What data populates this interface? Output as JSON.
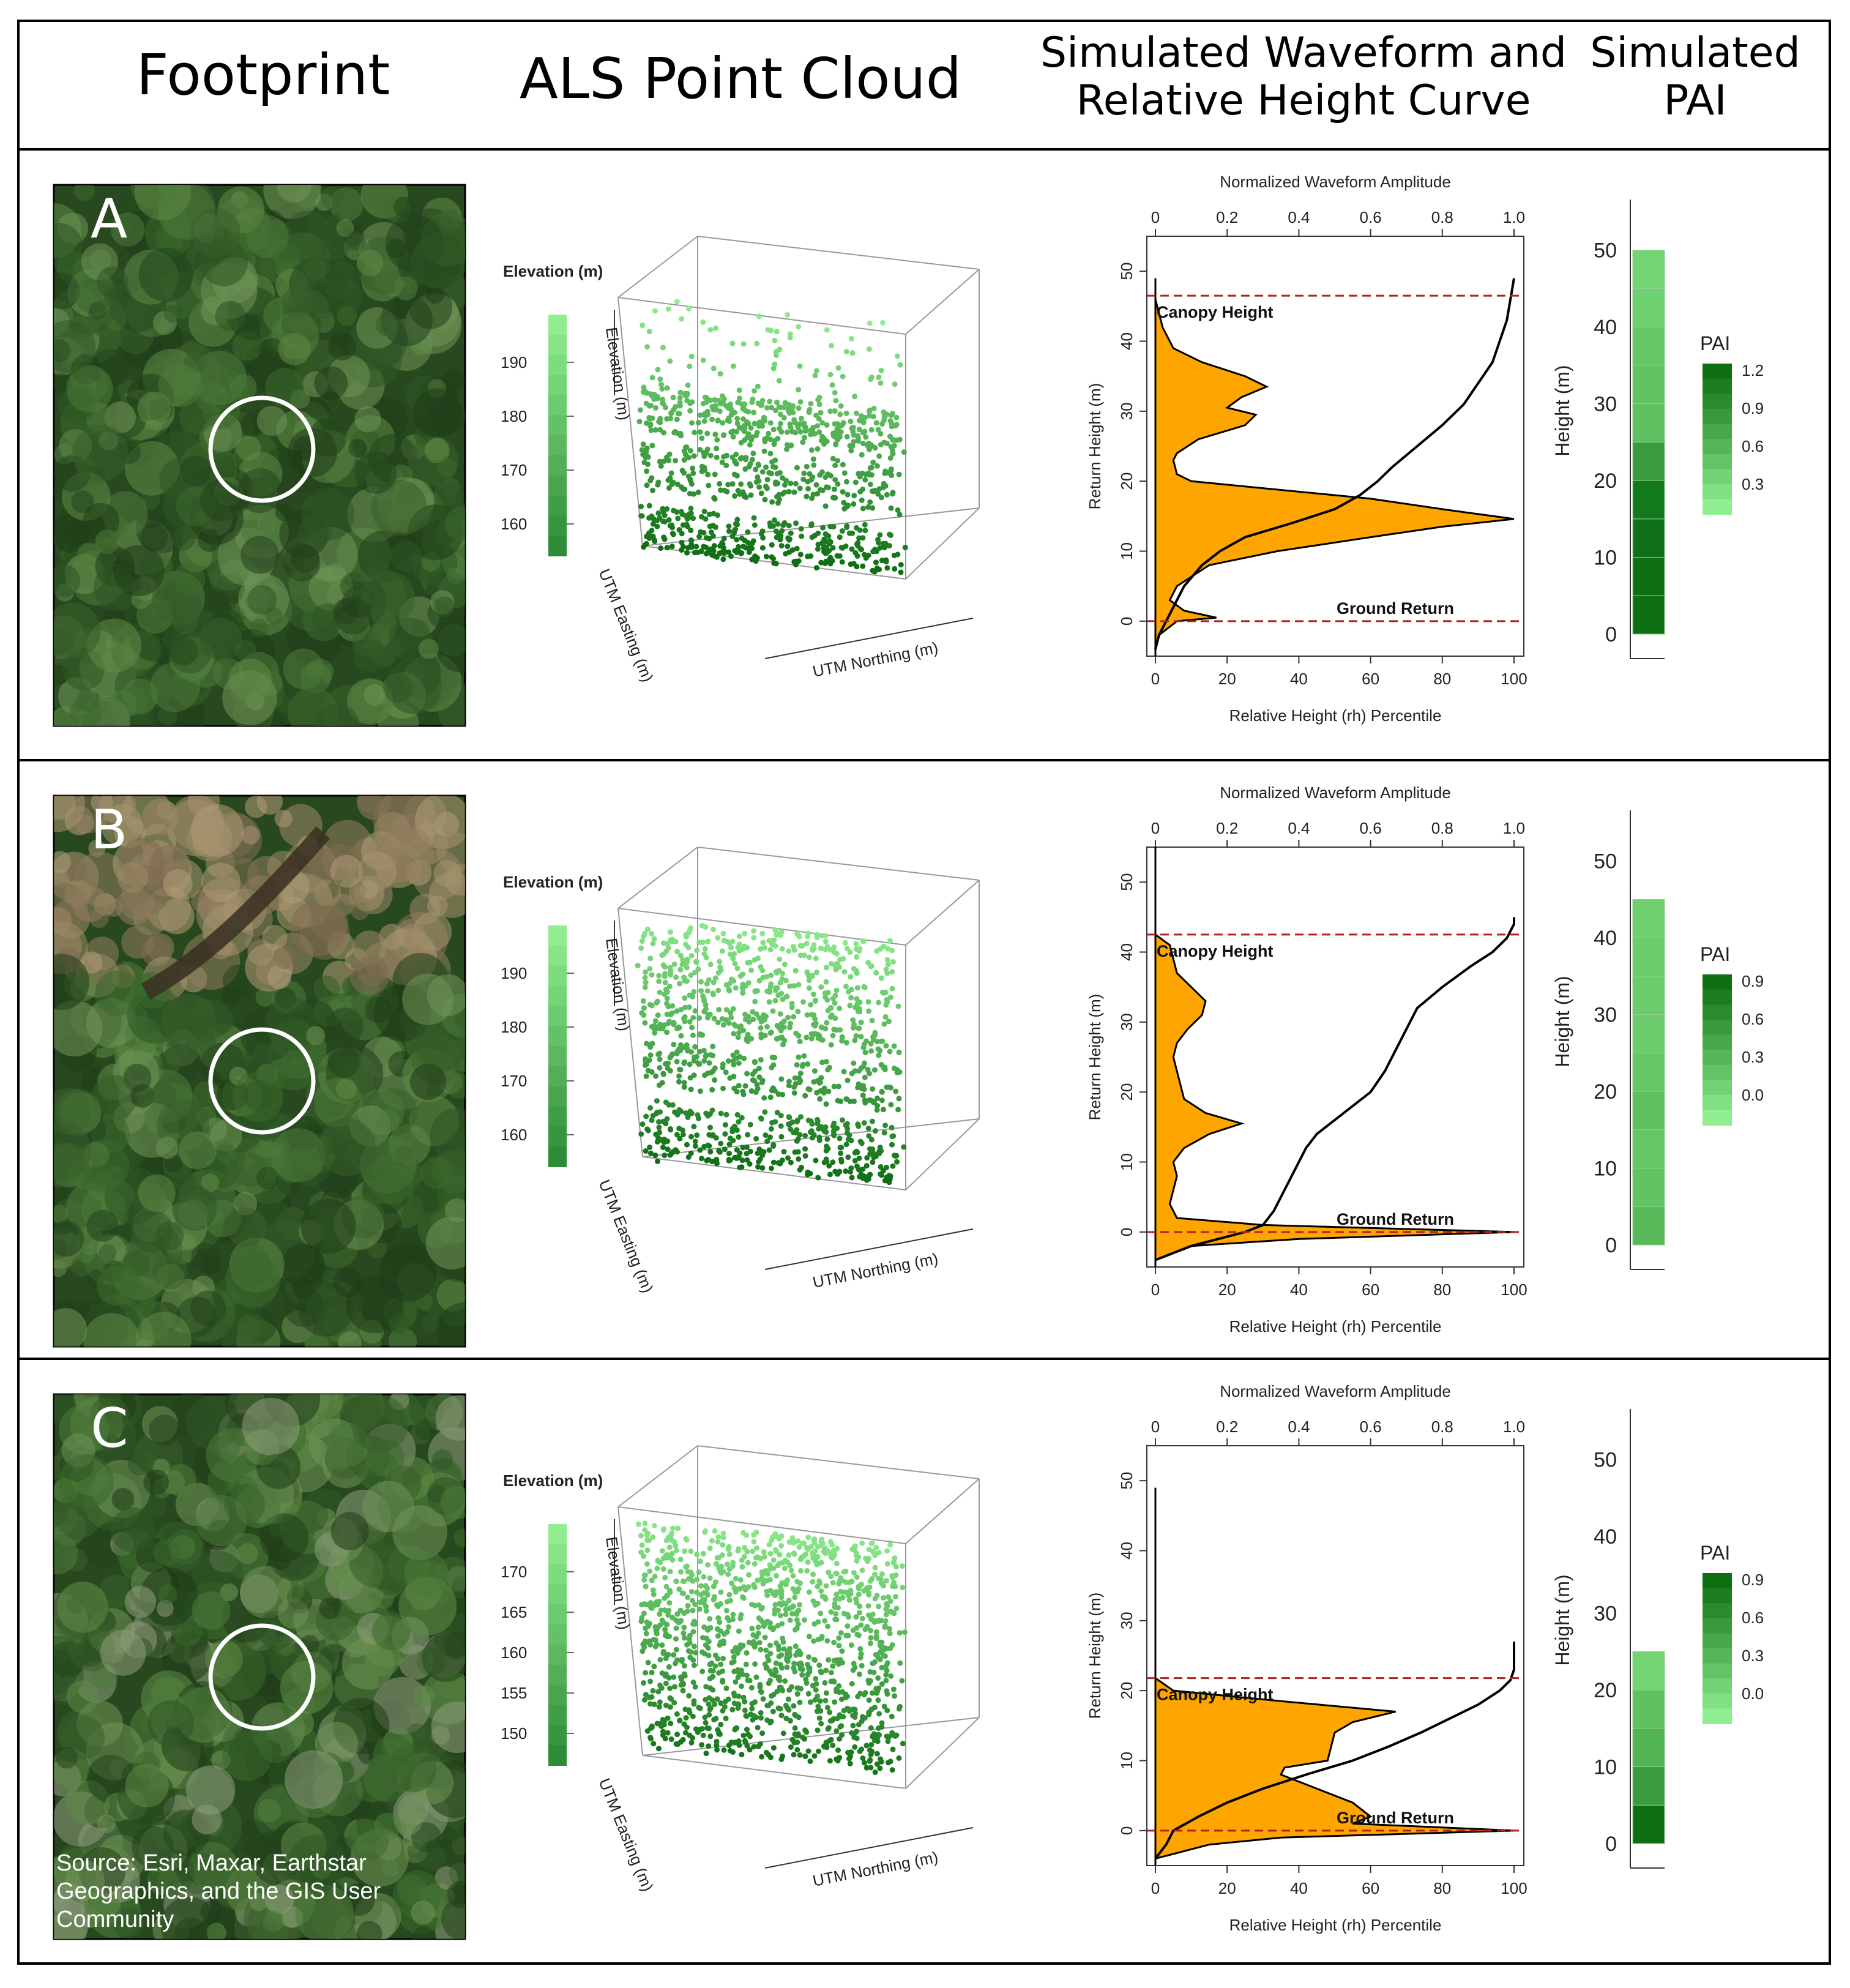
{
  "header": {
    "col1": "Footprint",
    "col2": "ALS Point Cloud",
    "col3_line1": "Simulated Waveform and",
    "col3_line2": "Relative Height Curve",
    "col4_line1": "Simulated",
    "col4_line2": "PAI"
  },
  "rows": [
    {
      "label": "A",
      "elevation_legend_title": "Elevation (m)",
      "elevation_ticks": [
        "190",
        "180",
        "170",
        "160"
      ],
      "axis_elevation": "Elevation (m)",
      "axis_easting": "UTM Easting (m)",
      "axis_northing": "UTM Northing (m)",
      "waveform": {
        "top_axis_title": "Normalized Waveform Amplitude",
        "top_ticks": [
          "0",
          "0.2",
          "0.4",
          "0.6",
          "0.8",
          "1.0"
        ],
        "bottom_ticks": [
          "0",
          "20",
          "40",
          "60",
          "80",
          "100"
        ],
        "bottom_axis_title": "Relative Height (rh) Percentile",
        "y_axis_title": "Return Height (m)",
        "y_ticks": [
          "50",
          "40",
          "30",
          "20",
          "10",
          "0"
        ],
        "canopy_label": "Canopy Height",
        "ground_label": "Ground Return",
        "canopy_height": 46.5,
        "amplitude_profile": [
          [
            -4,
            0.0
          ],
          [
            -2,
            0.01
          ],
          [
            0,
            0.06
          ],
          [
            0.5,
            0.17
          ],
          [
            1.5,
            0.08
          ],
          [
            3,
            0.04
          ],
          [
            5,
            0.06
          ],
          [
            8,
            0.15
          ],
          [
            10,
            0.34
          ],
          [
            12,
            0.6
          ],
          [
            13.5,
            0.8
          ],
          [
            14.6,
            1.0
          ],
          [
            16,
            0.8
          ],
          [
            17.5,
            0.6
          ],
          [
            19,
            0.3
          ],
          [
            20,
            0.1
          ],
          [
            21,
            0.06
          ],
          [
            23,
            0.05
          ],
          [
            24,
            0.06
          ],
          [
            26,
            0.12
          ],
          [
            28,
            0.25
          ],
          [
            29.5,
            0.28
          ],
          [
            30.5,
            0.2
          ],
          [
            32,
            0.24
          ],
          [
            33.5,
            0.31
          ],
          [
            35,
            0.25
          ],
          [
            37,
            0.13
          ],
          [
            39,
            0.05
          ],
          [
            42,
            0.02
          ],
          [
            44,
            0.01
          ],
          [
            46,
            0.0
          ]
        ],
        "rh_curve": [
          [
            -4,
            0
          ],
          [
            -2,
            1
          ],
          [
            0,
            3
          ],
          [
            2,
            5
          ],
          [
            5,
            8
          ],
          [
            8,
            13
          ],
          [
            10,
            18
          ],
          [
            12,
            25
          ],
          [
            14,
            38
          ],
          [
            16,
            50
          ],
          [
            18,
            57
          ],
          [
            20,
            62
          ],
          [
            22,
            66
          ],
          [
            25,
            73
          ],
          [
            28,
            80
          ],
          [
            31,
            86
          ],
          [
            34,
            90
          ],
          [
            37,
            94
          ],
          [
            40,
            96
          ],
          [
            43,
            98
          ],
          [
            46,
            99
          ],
          [
            49,
            100
          ]
        ]
      },
      "pai": {
        "y_axis_title": "Height (m)",
        "y_ticks": [
          "50",
          "40",
          "30",
          "20",
          "10",
          "0"
        ],
        "legend_title": "PAI",
        "legend_ticks": [
          "1.2",
          "0.9",
          "0.6",
          "0.3"
        ],
        "bin_colors": [
          "#0e6e12",
          "#0e6e12",
          "#10701a",
          "#137a1c",
          "#3a9a3c",
          "#5fc05f",
          "#63c363",
          "#66c666",
          "#6fd06f",
          "#72d472"
        ]
      }
    },
    {
      "label": "B",
      "elevation_legend_title": "Elevation (m)",
      "elevation_ticks": [
        "190",
        "180",
        "170",
        "160"
      ],
      "axis_elevation": "Elevation (m)",
      "axis_easting": "UTM Easting (m)",
      "axis_northing": "UTM Northing (m)",
      "waveform": {
        "top_axis_title": "Normalized Waveform Amplitude",
        "top_ticks": [
          "0",
          "0.2",
          "0.4",
          "0.6",
          "0.8",
          "1.0"
        ],
        "bottom_ticks": [
          "0",
          "20",
          "40",
          "60",
          "80",
          "100"
        ],
        "bottom_axis_title": "Relative Height (rh) Percentile",
        "y_axis_title": "Return Height (m)",
        "y_ticks": [
          "50",
          "40",
          "30",
          "20",
          "10",
          "0"
        ],
        "canopy_label": "Canopy Height",
        "ground_label": "Ground Return",
        "canopy_height": 42.5,
        "amplitude_profile": [
          [
            -4,
            0.0
          ],
          [
            -2,
            0.1
          ],
          [
            -1,
            0.4
          ],
          [
            0,
            1.0
          ],
          [
            1,
            0.3
          ],
          [
            2,
            0.06
          ],
          [
            4,
            0.04
          ],
          [
            6,
            0.05
          ],
          [
            8,
            0.06
          ],
          [
            10,
            0.05
          ],
          [
            12,
            0.08
          ],
          [
            14,
            0.15
          ],
          [
            15.5,
            0.24
          ],
          [
            17,
            0.14
          ],
          [
            19,
            0.08
          ],
          [
            21,
            0.07
          ],
          [
            23,
            0.06
          ],
          [
            25,
            0.05
          ],
          [
            27,
            0.06
          ],
          [
            29,
            0.09
          ],
          [
            31,
            0.13
          ],
          [
            33,
            0.14
          ],
          [
            35,
            0.1
          ],
          [
            37,
            0.06
          ],
          [
            39,
            0.05
          ],
          [
            41,
            0.04
          ],
          [
            42.5,
            0.0
          ]
        ],
        "rh_curve": [
          [
            -4,
            0
          ],
          [
            -2,
            10
          ],
          [
            0,
            25
          ],
          [
            1,
            30
          ],
          [
            3,
            33
          ],
          [
            6,
            36
          ],
          [
            9,
            39
          ],
          [
            12,
            42
          ],
          [
            14,
            45
          ],
          [
            16,
            50
          ],
          [
            18,
            55
          ],
          [
            20,
            60
          ],
          [
            23,
            64
          ],
          [
            26,
            67
          ],
          [
            29,
            70
          ],
          [
            32,
            73
          ],
          [
            35,
            80
          ],
          [
            38,
            88
          ],
          [
            40,
            94
          ],
          [
            42,
            98
          ],
          [
            44,
            100
          ],
          [
            45,
            100
          ]
        ]
      },
      "pai": {
        "y_axis_title": "Height (m)",
        "y_ticks": [
          "50",
          "40",
          "30",
          "20",
          "10",
          "0"
        ],
        "legend_title": "PAI",
        "legend_ticks": [
          "0.9",
          "0.6",
          "0.3",
          "0.0"
        ],
        "bin_colors": [
          "#57b957",
          "#63c363",
          "#66c666",
          "#5ebf5e",
          "#66c666",
          "#6ccc6c",
          "#6ccc6c",
          "#6ccc6c",
          "#70d070"
        ]
      }
    },
    {
      "label": "C",
      "elevation_legend_title": "Elevation (m)",
      "elevation_ticks": [
        "170",
        "165",
        "160",
        "155",
        "150"
      ],
      "axis_elevation": "Elevation (m)",
      "axis_easting": "UTM Easting (m)",
      "axis_northing": "UTM Northing (m)",
      "source_text_line1": "Source: Esri, Maxar, Earthstar",
      "source_text_line2": "Geographics, and the GIS User",
      "source_text_line3": "Community",
      "waveform": {
        "top_axis_title": "Normalized Waveform Amplitude",
        "top_ticks": [
          "0",
          "0.2",
          "0.4",
          "0.6",
          "0.8",
          "1.0"
        ],
        "bottom_ticks": [
          "0",
          "20",
          "40",
          "60",
          "80",
          "100"
        ],
        "bottom_axis_title": "Relative Height (rh) Percentile",
        "y_axis_title": "Return Height (m)",
        "y_ticks": [
          "50",
          "40",
          "30",
          "20",
          "10",
          "0"
        ],
        "canopy_label": "Canopy Height",
        "ground_label": "Ground Return",
        "canopy_height": 21.8,
        "amplitude_profile": [
          [
            -4,
            0.0
          ],
          [
            -2,
            0.15
          ],
          [
            -1,
            0.35
          ],
          [
            0,
            1.0
          ],
          [
            1,
            0.55
          ],
          [
            2,
            0.6
          ],
          [
            4,
            0.55
          ],
          [
            6,
            0.45
          ],
          [
            8,
            0.35
          ],
          [
            9,
            0.36
          ],
          [
            10,
            0.48
          ],
          [
            12,
            0.49
          ],
          [
            14,
            0.5
          ],
          [
            15.5,
            0.55
          ],
          [
            17,
            0.67
          ],
          [
            18.5,
            0.35
          ],
          [
            20,
            0.05
          ],
          [
            21.8,
            0.0
          ]
        ],
        "rh_curve": [
          [
            -4,
            0
          ],
          [
            -2,
            3
          ],
          [
            0,
            5
          ],
          [
            2,
            12
          ],
          [
            4,
            20
          ],
          [
            6,
            30
          ],
          [
            8,
            42
          ],
          [
            10,
            55
          ],
          [
            12,
            65
          ],
          [
            14,
            74
          ],
          [
            16,
            82
          ],
          [
            18,
            90
          ],
          [
            20,
            96
          ],
          [
            21.5,
            99
          ],
          [
            23,
            100
          ],
          [
            27,
            100
          ]
        ]
      },
      "pai": {
        "y_axis_title": "Height (m)",
        "y_ticks": [
          "50",
          "40",
          "30",
          "20",
          "10",
          "0"
        ],
        "legend_title": "PAI",
        "legend_ticks": [
          "0.9",
          "0.6",
          "0.3",
          "0.0"
        ],
        "bin_colors": [
          "#0e6e12",
          "#3a9a3c",
          "#52b452",
          "#5fc05f",
          "#72d472"
        ]
      }
    }
  ],
  "colors": {
    "waveform_fill": "#ffa500",
    "dashed_line": "#b22222",
    "legend_dark": "#0e6e12",
    "legend_light": "#90ee90"
  }
}
